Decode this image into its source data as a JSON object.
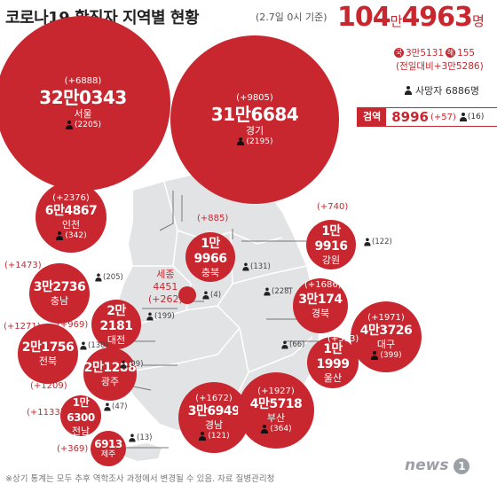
{
  "header": {
    "title": "코로나19 확진자 지역별 현황",
    "subtitle": "(2.7일 0시 기준)",
    "total_a": "104",
    "total_unit": "만",
    "total_b": "4963",
    "total_suffix": "명",
    "domestic_badge": "국",
    "domestic": "3만5131",
    "overseas_badge": "해",
    "overseas": "155",
    "change": "(전일대비+3만5286)",
    "deaths_label": "사망자 6886명",
    "quarantine_label": "검역",
    "quarantine_total": "8996",
    "quarantine_delta": "(+57)",
    "quarantine_deaths": "(16)"
  },
  "colors": {
    "accent": "#c8272f",
    "map": "#e2e3e5",
    "map_line": "#ffffff"
  },
  "regions": [
    {
      "id": "seoul",
      "name": "서울",
      "total": "32만0343",
      "delta": "(+6888)",
      "deaths": "(2205)"
    },
    {
      "id": "gyeonggi",
      "name": "경기",
      "total": "31만6684",
      "delta": "(+9805)",
      "deaths": "(2195)"
    },
    {
      "id": "incheon",
      "name": "인천",
      "total": "6만4867",
      "delta": "(+2376)",
      "deaths": "(342)"
    },
    {
      "id": "chungbuk",
      "name": "충북",
      "total": "1만9966",
      "delta": "(+885)",
      "deaths": "(131)"
    },
    {
      "id": "gangwon",
      "name": "강원",
      "total": "1만9916",
      "delta": "(+740)",
      "deaths": "(122)"
    },
    {
      "id": "chungnam",
      "name": "충남",
      "total": "3만2736",
      "delta": "(+1473)",
      "deaths": "(205)"
    },
    {
      "id": "sejong",
      "name": "세종",
      "total": "4451",
      "delta": "(+262)",
      "deaths": "(4)"
    },
    {
      "id": "gyeongbuk",
      "name": "경북",
      "total": "3만174",
      "delta": "(+1686)",
      "deaths": "(228)"
    },
    {
      "id": "daejeon",
      "name": "대전",
      "total": "2만2181",
      "delta": "(+969)",
      "deaths": "(199)"
    },
    {
      "id": "daegu",
      "name": "대구",
      "total": "4만3726",
      "delta": "(+1971)",
      "deaths": "(399)"
    },
    {
      "id": "jeonbuk",
      "name": "전북",
      "total": "2만1756",
      "delta": "(+1271)",
      "deaths": "(130)"
    },
    {
      "id": "ulsan",
      "name": "울산",
      "total": "1만1999",
      "delta": "(+593)",
      "deaths": "(66)"
    },
    {
      "id": "gwangju",
      "name": "광주",
      "total": "2만1288",
      "delta": "(+1209)",
      "deaths": "(99)"
    },
    {
      "id": "jeonnam",
      "name": "전남",
      "total": "1만6300",
      "delta": "(+1133)",
      "deaths": "(47)"
    },
    {
      "id": "gyeongnam",
      "name": "경남",
      "total": "3만6949",
      "delta": "(+1672)",
      "deaths": "(121)"
    },
    {
      "id": "busan",
      "name": "부산",
      "total": "4만5718",
      "delta": "(+1927)",
      "deaths": "(364)"
    },
    {
      "id": "jeju",
      "name": "제주",
      "total": "6913",
      "delta": "(+369)",
      "deaths": "(13)"
    }
  ],
  "footer": {
    "note": "※상기 통계는 모두 추후 역학조사 과정에서 변경될 수 있음.  자료 질병관리청",
    "logo": "news",
    "logo_num": "1"
  }
}
